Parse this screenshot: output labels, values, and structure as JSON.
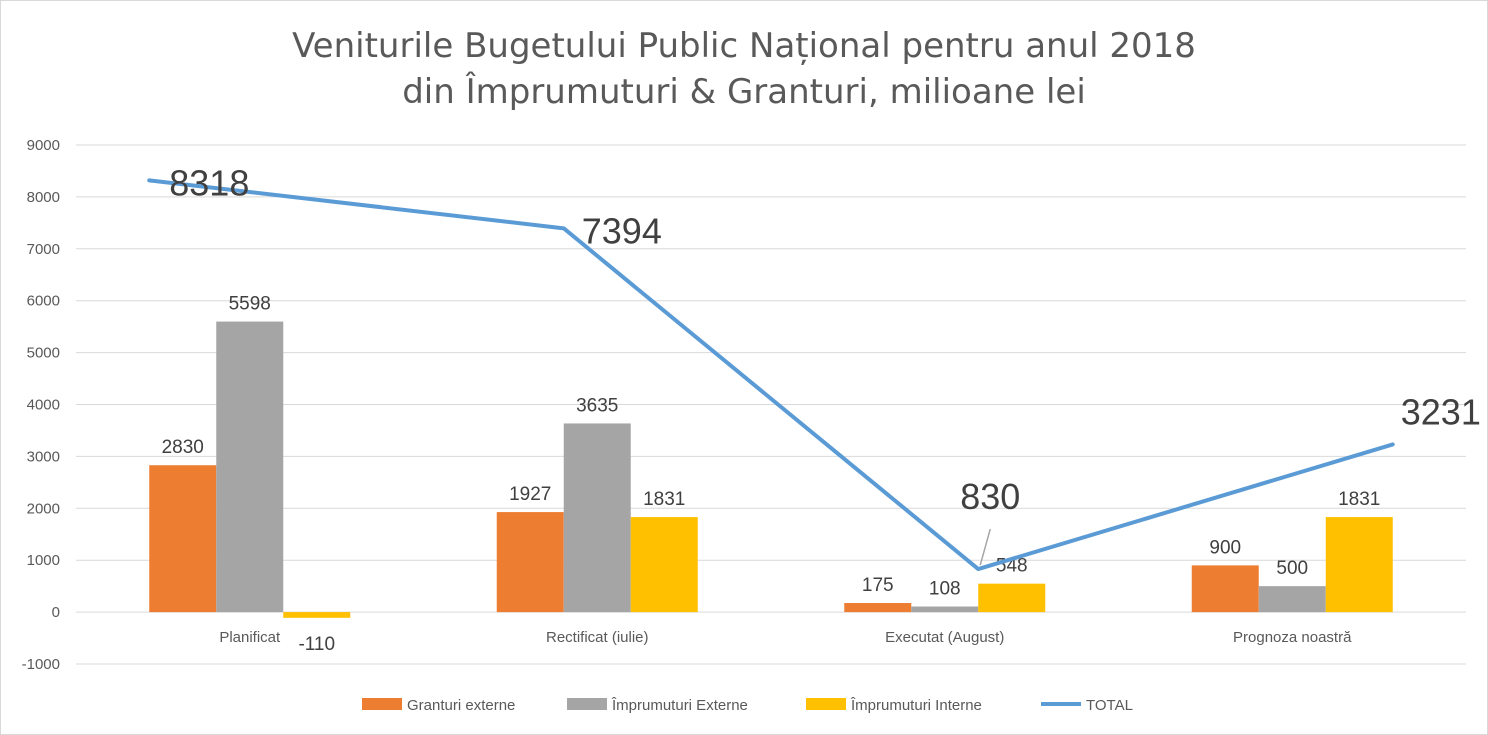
{
  "chart_data": {
    "type": "bar",
    "title": [
      "Veniturile Bugetului Public Național pentru anul 2018",
      "din Împrumuturi & Granturi, milioane lei"
    ],
    "categories": [
      "Planificat",
      "Rectificat (iulie)",
      "Executat (August)",
      "Prognoza noastră"
    ],
    "series": [
      {
        "name": "Granturi externe",
        "type": "bar",
        "color": "#ED7D31",
        "values": [
          2830,
          1927,
          175,
          900
        ]
      },
      {
        "name": "Împrumuturi Externe",
        "type": "bar",
        "color": "#A5A5A5",
        "values": [
          5598,
          3635,
          108,
          500
        ]
      },
      {
        "name": "Împrumuturi Interne",
        "type": "bar",
        "color": "#FFC000",
        "values": [
          -110,
          1831,
          548,
          1831
        ]
      },
      {
        "name": "TOTAL",
        "type": "line",
        "color": "#5B9BD5",
        "values": [
          8318,
          7394,
          830,
          3231
        ]
      }
    ],
    "ylim": [
      -1000,
      9000
    ],
    "yticks": [
      -1000,
      0,
      1000,
      2000,
      3000,
      4000,
      5000,
      6000,
      7000,
      8000,
      9000
    ],
    "grid": true,
    "legend_position": "bottom"
  }
}
